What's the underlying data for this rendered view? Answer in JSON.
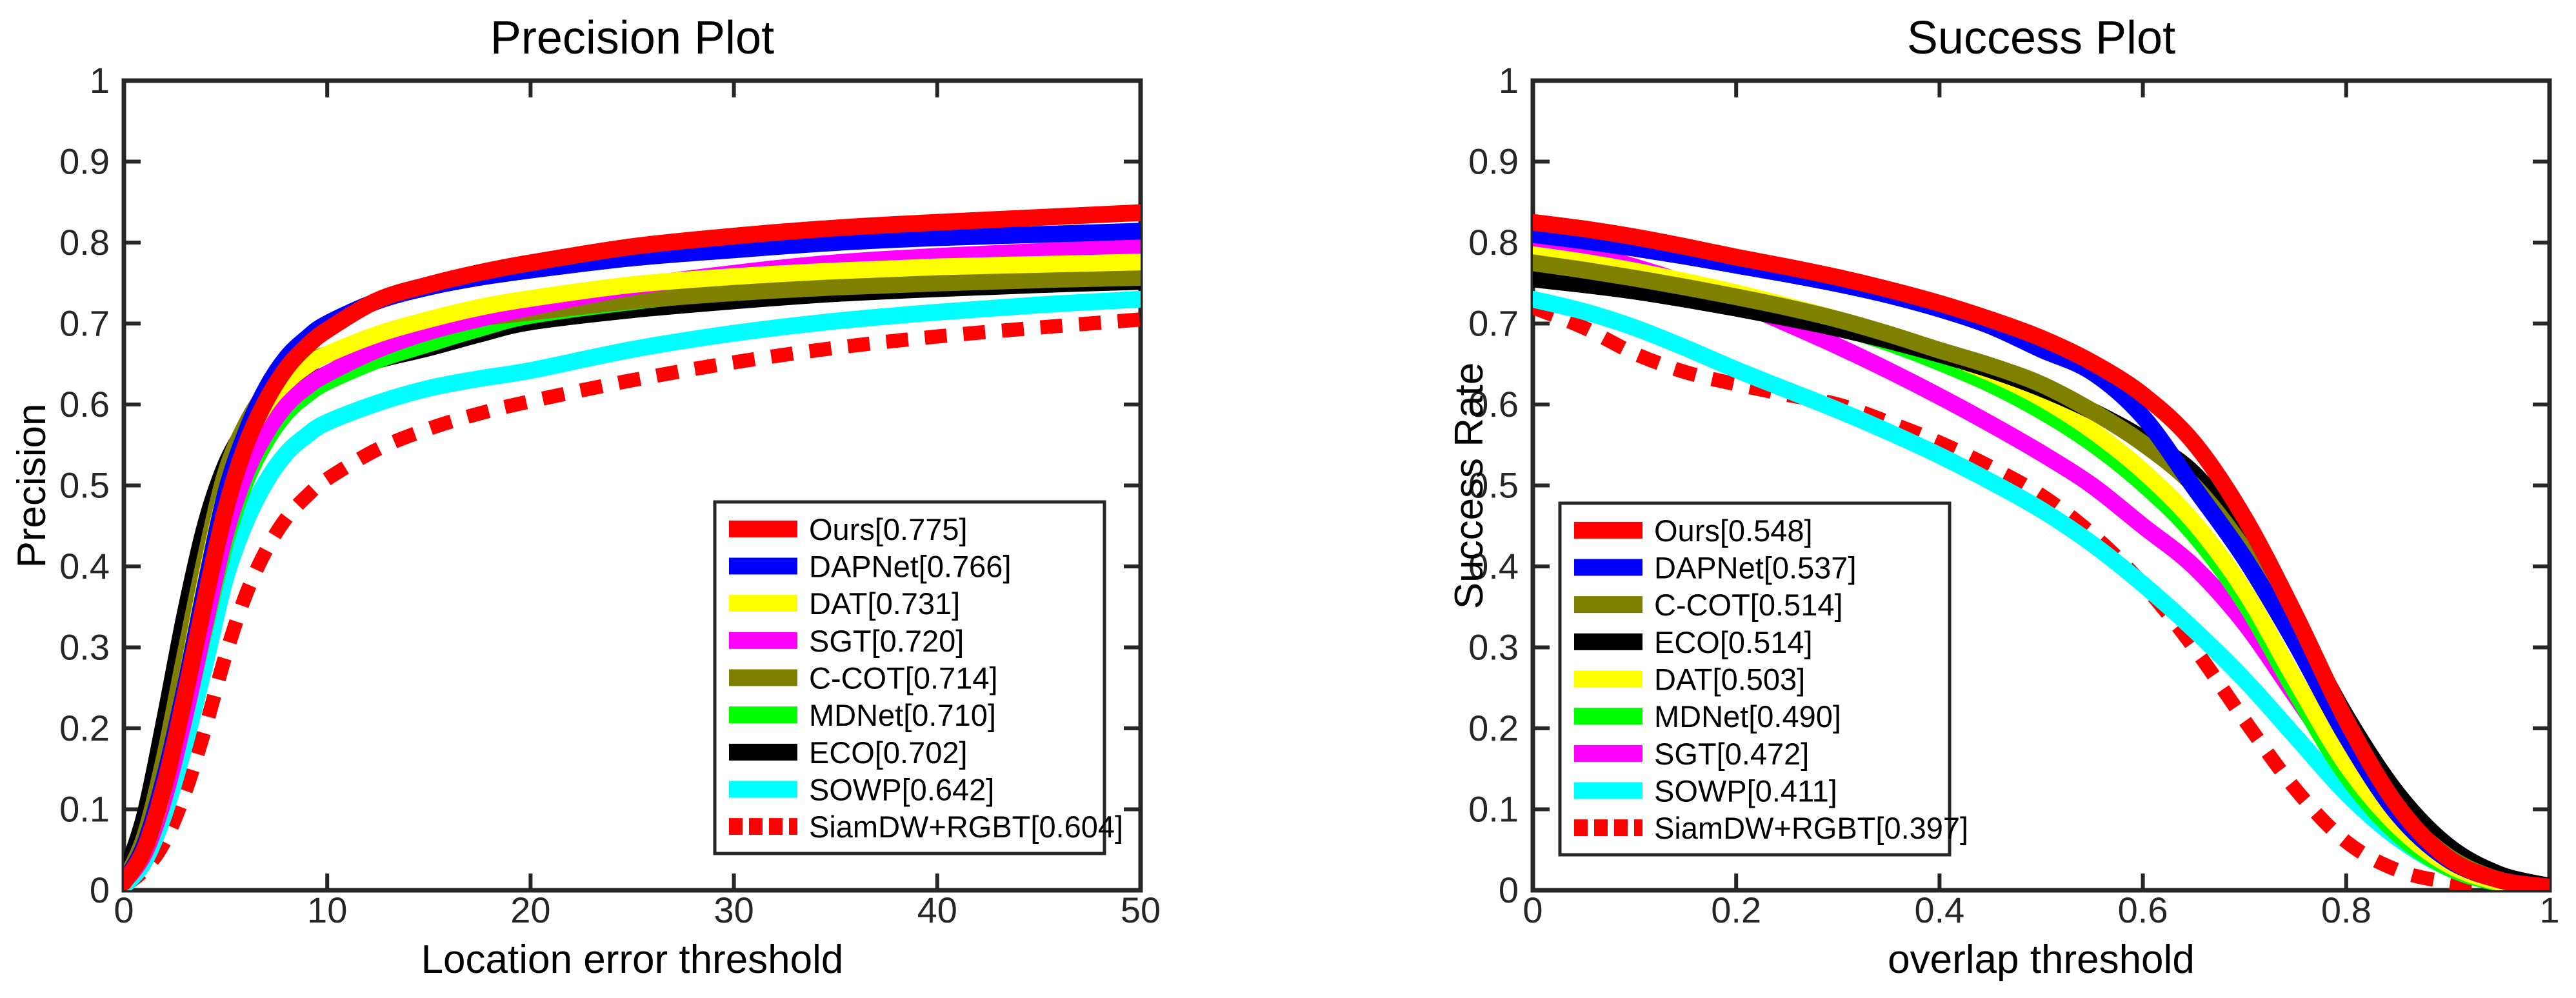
{
  "style": {
    "background": "#ffffff",
    "axis_color": "#262626",
    "tick_label_color": "#262626",
    "text_color": "#000000",
    "legend_border_color": "#262626",
    "legend_fill": "#ffffff"
  },
  "chart_data": [
    {
      "id": "precision",
      "type": "line",
      "title": "Precision Plot",
      "xlabel": "Location error threshold",
      "ylabel": "Precision",
      "xlim": [
        0,
        50
      ],
      "ylim": [
        0,
        1
      ],
      "xticks": [
        0,
        10,
        20,
        30,
        40,
        50
      ],
      "xtick_labels": [
        "0",
        "10",
        "20",
        "30",
        "40",
        "50"
      ],
      "yticks": [
        0,
        0.1,
        0.2,
        0.3,
        0.4,
        0.5,
        0.6,
        0.7,
        0.8,
        0.9,
        1
      ],
      "ytick_labels": [
        "0",
        "0.1",
        "0.2",
        "0.3",
        "0.4",
        "0.5",
        "0.6",
        "0.7",
        "0.8",
        "0.9",
        "1"
      ],
      "grid": false,
      "legend_position": "inside lower-right",
      "x": [
        0,
        1,
        2,
        3,
        4,
        5,
        6,
        7,
        8,
        9,
        10,
        12.5,
        15,
        17.5,
        20,
        25,
        30,
        35,
        40,
        45,
        50
      ],
      "series": [
        {
          "name": "Ours",
          "label": "Ours[0.775]",
          "score": 0.775,
          "color": "#FF0000",
          "dash": false,
          "y": [
            0.01,
            0.05,
            0.13,
            0.24,
            0.36,
            0.47,
            0.55,
            0.605,
            0.645,
            0.672,
            0.692,
            0.729,
            0.748,
            0.763,
            0.775,
            0.795,
            0.808,
            0.818,
            0.825,
            0.831,
            0.837
          ]
        },
        {
          "name": "DAPNet",
          "label": "DAPNet[0.766]",
          "score": 0.766,
          "color": "#0000FF",
          "dash": false,
          "y": [
            0.01,
            0.055,
            0.14,
            0.25,
            0.375,
            0.49,
            0.565,
            0.62,
            0.658,
            0.682,
            0.7,
            0.728,
            0.745,
            0.757,
            0.766,
            0.781,
            0.791,
            0.8,
            0.806,
            0.81,
            0.814
          ]
        },
        {
          "name": "DAT",
          "label": "DAT[0.731]",
          "score": 0.731,
          "color": "#FFFF00",
          "dash": false,
          "y": [
            0.01,
            0.05,
            0.13,
            0.25,
            0.38,
            0.49,
            0.555,
            0.6,
            0.628,
            0.648,
            0.662,
            0.687,
            0.705,
            0.72,
            0.731,
            0.748,
            0.758,
            0.765,
            0.77,
            0.773,
            0.776
          ]
        },
        {
          "name": "SGT",
          "label": "SGT[0.720]",
          "score": 0.72,
          "color": "#FF00FF",
          "dash": false,
          "y": [
            0.01,
            0.045,
            0.115,
            0.215,
            0.33,
            0.44,
            0.515,
            0.565,
            0.6,
            0.622,
            0.638,
            0.668,
            0.69,
            0.706,
            0.72,
            0.745,
            0.762,
            0.775,
            0.783,
            0.789,
            0.794
          ]
        },
        {
          "name": "C-COT",
          "label": "C-COT[0.714]",
          "score": 0.714,
          "color": "#7F7F00",
          "dash": false,
          "y": [
            0.01,
            0.065,
            0.165,
            0.29,
            0.41,
            0.515,
            0.575,
            0.615,
            0.638,
            0.652,
            0.662,
            0.682,
            0.697,
            0.707,
            0.714,
            0.728,
            0.738,
            0.745,
            0.75,
            0.754,
            0.757
          ]
        },
        {
          "name": "MDNet",
          "label": "MDNet[0.710]",
          "score": 0.71,
          "color": "#00FF00",
          "dash": false,
          "y": [
            0.01,
            0.045,
            0.115,
            0.215,
            0.325,
            0.43,
            0.505,
            0.555,
            0.59,
            0.612,
            0.628,
            0.655,
            0.675,
            0.694,
            0.71,
            0.727,
            0.74,
            0.749,
            0.755,
            0.759,
            0.763
          ]
        },
        {
          "name": "ECO",
          "label": "ECO[0.702]",
          "score": 0.702,
          "color": "#000000",
          "dash": false,
          "y": [
            0.015,
            0.09,
            0.21,
            0.34,
            0.45,
            0.525,
            0.57,
            0.6,
            0.617,
            0.628,
            0.637,
            0.655,
            0.67,
            0.687,
            0.702,
            0.717,
            0.728,
            0.737,
            0.743,
            0.748,
            0.752
          ]
        },
        {
          "name": "SOWP",
          "label": "SOWP[0.642]",
          "score": 0.642,
          "color": "#00FFFF",
          "dash": false,
          "y": [
            0.005,
            0.035,
            0.095,
            0.18,
            0.28,
            0.385,
            0.455,
            0.505,
            0.54,
            0.562,
            0.578,
            0.602,
            0.62,
            0.632,
            0.642,
            0.668,
            0.688,
            0.703,
            0.714,
            0.723,
            0.73
          ]
        },
        {
          "name": "SiamDW+RGBT",
          "label": "SiamDW+RGBT[0.604]",
          "score": 0.604,
          "color": "#FF0000",
          "dash": true,
          "y": [
            0.005,
            0.025,
            0.06,
            0.12,
            0.2,
            0.29,
            0.365,
            0.42,
            0.46,
            0.487,
            0.508,
            0.545,
            0.57,
            0.589,
            0.604,
            0.63,
            0.652,
            0.67,
            0.684,
            0.695,
            0.705
          ]
        }
      ]
    },
    {
      "id": "success",
      "type": "line",
      "title": "Success Plot",
      "xlabel": "overlap threshold",
      "ylabel": "Success Rate",
      "xlim": [
        0,
        1
      ],
      "ylim": [
        0,
        1
      ],
      "xticks": [
        0,
        0.2,
        0.4,
        0.6,
        0.8,
        1
      ],
      "xtick_labels": [
        "0",
        "0.2",
        "0.4",
        "0.6",
        "0.8",
        "1"
      ],
      "yticks": [
        0,
        0.1,
        0.2,
        0.3,
        0.4,
        0.5,
        0.6,
        0.7,
        0.8,
        0.9,
        1
      ],
      "ytick_labels": [
        "0",
        "0.1",
        "0.2",
        "0.3",
        "0.4",
        "0.5",
        "0.6",
        "0.7",
        "0.8",
        "0.9",
        "1"
      ],
      "grid": false,
      "legend_position": "inside lower-left",
      "x": [
        0,
        0.05,
        0.1,
        0.15,
        0.2,
        0.25,
        0.3,
        0.35,
        0.4,
        0.45,
        0.5,
        0.55,
        0.6,
        0.65,
        0.7,
        0.75,
        0.8,
        0.85,
        0.9,
        0.95,
        1
      ],
      "series": [
        {
          "name": "Ours",
          "label": "Ours[0.548]",
          "score": 0.548,
          "color": "#FF0000",
          "dash": false,
          "y": [
            0.825,
            0.817,
            0.807,
            0.795,
            0.782,
            0.77,
            0.757,
            0.742,
            0.725,
            0.705,
            0.682,
            0.652,
            0.612,
            0.553,
            0.46,
            0.34,
            0.21,
            0.105,
            0.04,
            0.013,
            0.004
          ]
        },
        {
          "name": "DAPNet",
          "label": "DAPNet[0.537]",
          "score": 0.537,
          "color": "#0000FF",
          "dash": false,
          "y": [
            0.81,
            0.802,
            0.793,
            0.783,
            0.772,
            0.761,
            0.749,
            0.735,
            0.718,
            0.697,
            0.668,
            0.64,
            0.585,
            0.498,
            0.41,
            0.305,
            0.19,
            0.095,
            0.038,
            0.013,
            0.004
          ]
        },
        {
          "name": "C-COT",
          "label": "C-COT[0.514]",
          "score": 0.514,
          "color": "#7F7F00",
          "dash": false,
          "y": [
            0.775,
            0.766,
            0.756,
            0.745,
            0.733,
            0.72,
            0.705,
            0.687,
            0.667,
            0.648,
            0.625,
            0.592,
            0.552,
            0.5,
            0.42,
            0.315,
            0.195,
            0.1,
            0.042,
            0.013,
            0.004
          ]
        },
        {
          "name": "ECO",
          "label": "ECO[0.514]",
          "score": 0.514,
          "color": "#000000",
          "dash": false,
          "y": [
            0.755,
            0.748,
            0.74,
            0.73,
            0.719,
            0.707,
            0.694,
            0.679,
            0.662,
            0.643,
            0.62,
            0.592,
            0.558,
            0.515,
            0.435,
            0.33,
            0.215,
            0.12,
            0.055,
            0.02,
            0.005
          ]
        },
        {
          "name": "DAT",
          "label": "DAT[0.503]",
          "score": 0.503,
          "color": "#FFFF00",
          "dash": false,
          "y": [
            0.785,
            0.776,
            0.765,
            0.752,
            0.738,
            0.722,
            0.705,
            0.686,
            0.664,
            0.639,
            0.608,
            0.568,
            0.518,
            0.455,
            0.37,
            0.26,
            0.155,
            0.08,
            0.032,
            0.01,
            0.003
          ]
        },
        {
          "name": "MDNet",
          "label": "MDNet[0.490]",
          "score": 0.49,
          "color": "#00FF00",
          "dash": false,
          "y": [
            0.77,
            0.762,
            0.752,
            0.741,
            0.728,
            0.713,
            0.696,
            0.676,
            0.652,
            0.625,
            0.592,
            0.552,
            0.502,
            0.44,
            0.355,
            0.245,
            0.142,
            0.07,
            0.028,
            0.009,
            0.003
          ]
        },
        {
          "name": "SGT",
          "label": "SGT[0.472]",
          "score": 0.472,
          "color": "#FF00FF",
          "dash": false,
          "y": [
            0.8,
            0.787,
            0.77,
            0.75,
            0.727,
            0.7,
            0.672,
            0.642,
            0.61,
            0.576,
            0.54,
            0.5,
            0.45,
            0.4,
            0.33,
            0.24,
            0.15,
            0.08,
            0.035,
            0.012,
            0.004
          ]
        },
        {
          "name": "SOWP",
          "label": "SOWP[0.411]",
          "score": 0.411,
          "color": "#00FFFF",
          "dash": false,
          "y": [
            0.73,
            0.715,
            0.695,
            0.67,
            0.643,
            0.618,
            0.593,
            0.566,
            0.537,
            0.505,
            0.47,
            0.428,
            0.378,
            0.322,
            0.26,
            0.19,
            0.12,
            0.065,
            0.028,
            0.01,
            0.004
          ]
        },
        {
          "name": "SiamDW+RGBT",
          "label": "SiamDW+RGBT[0.397]",
          "score": 0.397,
          "color": "#FF0000",
          "dash": true,
          "y": [
            0.72,
            0.695,
            0.663,
            0.64,
            0.625,
            0.612,
            0.6,
            0.578,
            0.553,
            0.523,
            0.488,
            0.44,
            0.378,
            0.3,
            0.21,
            0.125,
            0.06,
            0.025,
            0.01,
            0.004,
            0.001
          ]
        }
      ]
    }
  ]
}
